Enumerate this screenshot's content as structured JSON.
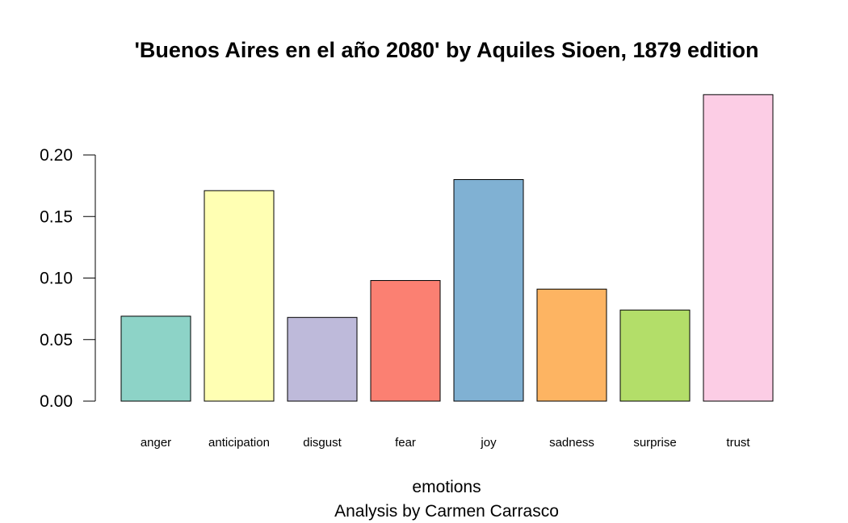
{
  "chart_data": {
    "type": "bar",
    "title": "'Buenos Aires en el año 2080' by Aquiles Sioen, 1879 edition",
    "xlabel": "emotions",
    "subtitle": "Analysis by Carmen Carrasco",
    "ylabel": "",
    "categories": [
      "anger",
      "anticipation",
      "disgust",
      "fear",
      "joy",
      "sadness",
      "surprise",
      "trust"
    ],
    "values": [
      0.069,
      0.171,
      0.068,
      0.098,
      0.18,
      0.091,
      0.074,
      0.249
    ],
    "colors": [
      "#8DD3C7",
      "#FFFFB3",
      "#BEBADA",
      "#FB8072",
      "#80B1D3",
      "#FDB462",
      "#B3DE69",
      "#FCCDE5"
    ],
    "yticks": [
      0.0,
      0.05,
      0.1,
      0.15,
      0.2
    ],
    "ytick_labels": [
      "0.00",
      "0.05",
      "0.10",
      "0.15",
      "0.20"
    ],
    "ylim": [
      0,
      0.25
    ],
    "grid": false,
    "legend": "none"
  }
}
